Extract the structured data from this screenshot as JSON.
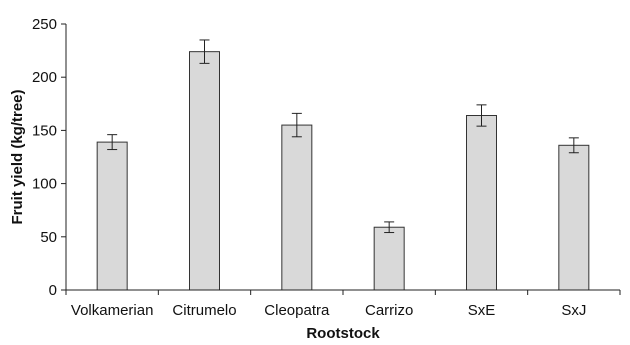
{
  "chart_data": {
    "type": "bar",
    "categories": [
      "Volkamerian",
      "Citrumelo",
      "Cleopatra",
      "Carrizo",
      "SxE",
      "SxJ"
    ],
    "values": [
      139,
      224,
      155,
      59,
      164,
      136
    ],
    "errors": [
      7,
      11,
      11,
      5,
      10,
      7
    ],
    "title": "",
    "xlabel": "Rootstock",
    "ylabel": "Fruit yield (kg/tree)",
    "ylim": [
      0,
      250
    ],
    "yticks": [
      0,
      50,
      100,
      150,
      200,
      250
    ],
    "grid": false,
    "legend": "none",
    "bar_color": "#d9d9d9",
    "bar_edge_color": "#333333"
  }
}
